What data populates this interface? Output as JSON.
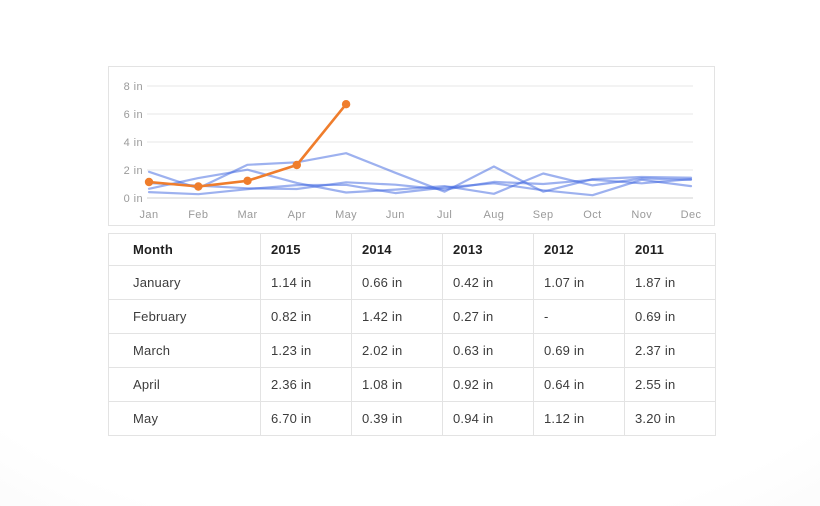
{
  "colors": {
    "accent_orange": "#ef7d2c",
    "line_blue": "#3b63e0",
    "grid_line": "#e7e7e7",
    "baseline": "#d2d2d2",
    "axis_text": "#9a9a9a",
    "panel_border": "#e3e3e3"
  },
  "chart_data": {
    "type": "line",
    "title": "",
    "xlabel": "",
    "ylabel": "",
    "unit": "in",
    "x": [
      "Jan",
      "Feb",
      "Mar",
      "Apr",
      "May",
      "Jun",
      "Jul",
      "Aug",
      "Sep",
      "Oct",
      "Nov",
      "Dec"
    ],
    "y_ticks": [
      0,
      2,
      4,
      6,
      8
    ],
    "y_tick_labels": [
      "0 in",
      "2 in",
      "4 in",
      "6 in",
      "8 in"
    ],
    "ylim": [
      0,
      8
    ],
    "grid": true,
    "legend_position": "none",
    "series": [
      {
        "name": "2015",
        "color": "#ef7d2c",
        "opacity": 1,
        "width": 2.6,
        "markers": true,
        "marker_radius": 4.2,
        "values": [
          1.14,
          0.82,
          1.23,
          2.36,
          6.7,
          null,
          null,
          null,
          null,
          null,
          null,
          null
        ]
      },
      {
        "name": "2014",
        "color": "#3b63e0",
        "opacity": 0.5,
        "width": 2.2,
        "markers": false,
        "marker_radius": 0,
        "values": [
          0.66,
          1.42,
          2.02,
          1.08,
          0.39,
          0.6,
          0.85,
          0.3,
          1.75,
          0.9,
          1.4,
          1.3
        ]
      },
      {
        "name": "2013",
        "color": "#3b63e0",
        "opacity": 0.5,
        "width": 2.2,
        "markers": false,
        "marker_radius": 0,
        "values": [
          0.42,
          0.27,
          0.63,
          0.92,
          0.94,
          0.35,
          0.75,
          1.05,
          0.55,
          0.2,
          1.3,
          0.85
        ]
      },
      {
        "name": "2012",
        "color": "#3b63e0",
        "opacity": 0.5,
        "width": 2.2,
        "markers": false,
        "marker_radius": 0,
        "values": [
          1.07,
          null,
          0.69,
          0.64,
          1.12,
          0.95,
          0.6,
          1.15,
          1.0,
          1.3,
          1.05,
          1.35
        ]
      },
      {
        "name": "2011",
        "color": "#3b63e0",
        "opacity": 0.5,
        "width": 2.2,
        "markers": false,
        "marker_radius": 0,
        "values": [
          1.87,
          0.69,
          2.37,
          2.55,
          3.2,
          1.8,
          0.45,
          2.25,
          0.45,
          1.35,
          1.5,
          1.45
        ]
      }
    ]
  },
  "table": {
    "columns": [
      "Month",
      "2015",
      "2014",
      "2013",
      "2012",
      "2011"
    ],
    "rows": [
      {
        "month": "January",
        "values": [
          "1.14 in",
          "0.66 in",
          "0.42 in",
          "1.07 in",
          "1.87 in"
        ]
      },
      {
        "month": "February",
        "values": [
          "0.82 in",
          "1.42 in",
          "0.27 in",
          "-",
          "0.69 in"
        ]
      },
      {
        "month": "March",
        "values": [
          "1.23 in",
          "2.02 in",
          "0.63 in",
          "0.69 in",
          "2.37 in"
        ]
      },
      {
        "month": "April",
        "values": [
          "2.36 in",
          "1.08 in",
          "0.92 in",
          "0.64 in",
          "2.55 in"
        ]
      },
      {
        "month": "May",
        "values": [
          "6.70 in",
          "0.39 in",
          "0.94 in",
          "1.12 in",
          "3.20 in"
        ]
      }
    ]
  }
}
